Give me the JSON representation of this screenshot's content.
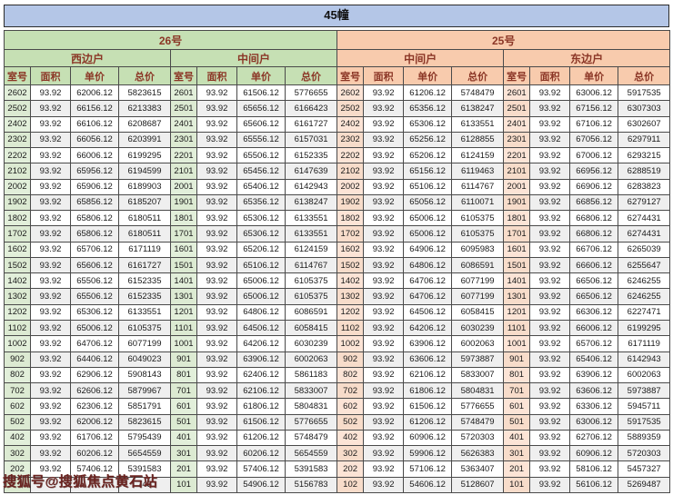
{
  "title": "45幢",
  "watermark": "搜狐号@搜狐焦点黄石站",
  "header": {
    "buildings": [
      {
        "label": "26号",
        "theme": "green"
      },
      {
        "label": "25号",
        "theme": "orange"
      }
    ],
    "units": [
      {
        "label": "西边户",
        "theme": "green"
      },
      {
        "label": "中间户",
        "theme": "green"
      },
      {
        "label": "中间户",
        "theme": "orange"
      },
      {
        "label": "东边户",
        "theme": "orange"
      }
    ],
    "columns": [
      "室号",
      "面积",
      "单价",
      "总价"
    ]
  },
  "table": {
    "rows": [
      [
        "2602",
        "93.92",
        "62006.12",
        "5823615",
        "2601",
        "93.92",
        "61506.12",
        "5776655",
        "2602",
        "93.92",
        "61206.12",
        "5748479",
        "2601",
        "93.92",
        "63006.12",
        "5917535"
      ],
      [
        "2502",
        "93.92",
        "66156.12",
        "6213383",
        "2501",
        "93.92",
        "65656.12",
        "6166423",
        "2502",
        "93.92",
        "65356.12",
        "6138247",
        "2501",
        "93.92",
        "67156.12",
        "6307303"
      ],
      [
        "2402",
        "93.92",
        "66106.12",
        "6208687",
        "2401",
        "93.92",
        "65606.12",
        "6161727",
        "2402",
        "93.92",
        "65306.12",
        "6133551",
        "2401",
        "93.92",
        "67106.12",
        "6302607"
      ],
      [
        "2302",
        "93.92",
        "66056.12",
        "6203991",
        "2301",
        "93.92",
        "65556.12",
        "6157031",
        "2302",
        "93.92",
        "65256.12",
        "6128855",
        "2301",
        "93.92",
        "67056.12",
        "6297911"
      ],
      [
        "2202",
        "93.92",
        "66006.12",
        "6199295",
        "2201",
        "93.92",
        "65506.12",
        "6152335",
        "2202",
        "93.92",
        "65206.12",
        "6124159",
        "2201",
        "93.92",
        "67006.12",
        "6293215"
      ],
      [
        "2102",
        "93.92",
        "65956.12",
        "6194599",
        "2101",
        "93.92",
        "65456.12",
        "6147639",
        "2102",
        "93.92",
        "65156.12",
        "6119463",
        "2101",
        "93.92",
        "66956.12",
        "6288519"
      ],
      [
        "2002",
        "93.92",
        "65906.12",
        "6189903",
        "2001",
        "93.92",
        "65406.12",
        "6142943",
        "2002",
        "93.92",
        "65106.12",
        "6114767",
        "2001",
        "93.92",
        "66906.12",
        "6283823"
      ],
      [
        "1902",
        "93.92",
        "65856.12",
        "6185207",
        "1901",
        "93.92",
        "65356.12",
        "6138247",
        "1902",
        "93.92",
        "65056.12",
        "6110071",
        "1901",
        "93.92",
        "66856.12",
        "6279127"
      ],
      [
        "1802",
        "93.92",
        "65806.12",
        "6180511",
        "1801",
        "93.92",
        "65306.12",
        "6133551",
        "1802",
        "93.92",
        "65006.12",
        "6105375",
        "1801",
        "93.92",
        "66806.12",
        "6274431"
      ],
      [
        "1702",
        "93.92",
        "65806.12",
        "6180511",
        "1701",
        "93.92",
        "65306.12",
        "6133551",
        "1702",
        "93.92",
        "65006.12",
        "6105375",
        "1701",
        "93.92",
        "66806.12",
        "6274431"
      ],
      [
        "1602",
        "93.92",
        "65706.12",
        "6171119",
        "1601",
        "93.92",
        "65206.12",
        "6124159",
        "1602",
        "93.92",
        "64906.12",
        "6095983",
        "1601",
        "93.92",
        "66706.12",
        "6265039"
      ],
      [
        "1502",
        "93.92",
        "65606.12",
        "6161727",
        "1501",
        "93.92",
        "65106.12",
        "6114767",
        "1502",
        "93.92",
        "64806.12",
        "6086591",
        "1501",
        "93.92",
        "66606.12",
        "6255647"
      ],
      [
        "1402",
        "93.92",
        "65506.12",
        "6152335",
        "1401",
        "93.92",
        "65006.12",
        "6105375",
        "1402",
        "93.92",
        "64706.12",
        "6077199",
        "1401",
        "93.92",
        "66506.12",
        "6246255"
      ],
      [
        "1302",
        "93.92",
        "65506.12",
        "6152335",
        "1301",
        "93.92",
        "65006.12",
        "6105375",
        "1302",
        "93.92",
        "64706.12",
        "6077199",
        "1301",
        "93.92",
        "66506.12",
        "6246255"
      ],
      [
        "1202",
        "93.92",
        "65306.12",
        "6133551",
        "1201",
        "93.92",
        "64806.12",
        "6086591",
        "1202",
        "93.92",
        "64506.12",
        "6058415",
        "1201",
        "93.92",
        "66306.12",
        "6227471"
      ],
      [
        "1102",
        "93.92",
        "65006.12",
        "6105375",
        "1101",
        "93.92",
        "64506.12",
        "6058415",
        "1102",
        "93.92",
        "64206.12",
        "6030239",
        "1101",
        "93.92",
        "66006.12",
        "6199295"
      ],
      [
        "1002",
        "93.92",
        "64706.12",
        "6077199",
        "1001",
        "93.92",
        "64206.12",
        "6030239",
        "1002",
        "93.92",
        "63906.12",
        "6002063",
        "1001",
        "93.92",
        "65706.12",
        "6171119"
      ],
      [
        "902",
        "93.92",
        "64406.12",
        "6049023",
        "901",
        "93.92",
        "63906.12",
        "6002063",
        "902",
        "93.92",
        "63606.12",
        "5973887",
        "901",
        "93.92",
        "65406.12",
        "6142943"
      ],
      [
        "802",
        "93.92",
        "62906.12",
        "5908143",
        "801",
        "93.92",
        "62406.12",
        "5861183",
        "802",
        "93.92",
        "62106.12",
        "5833007",
        "801",
        "93.92",
        "63906.12",
        "6002063"
      ],
      [
        "702",
        "93.92",
        "62606.12",
        "5879967",
        "701",
        "93.92",
        "62106.12",
        "5833007",
        "702",
        "93.92",
        "61806.12",
        "5804831",
        "701",
        "93.92",
        "63606.12",
        "5973887"
      ],
      [
        "602",
        "93.92",
        "62306.12",
        "5851791",
        "601",
        "93.92",
        "61806.12",
        "5804831",
        "602",
        "93.92",
        "61506.12",
        "5776655",
        "601",
        "93.92",
        "63306.12",
        "5945711"
      ],
      [
        "502",
        "93.92",
        "62006.12",
        "5823615",
        "501",
        "93.92",
        "61506.12",
        "5776655",
        "502",
        "93.92",
        "61206.12",
        "5748479",
        "501",
        "93.92",
        "63006.12",
        "5917535"
      ],
      [
        "402",
        "93.92",
        "61706.12",
        "5795439",
        "401",
        "93.92",
        "61206.12",
        "5748479",
        "402",
        "93.92",
        "60906.12",
        "5720303",
        "401",
        "93.92",
        "62706.12",
        "5889359"
      ],
      [
        "302",
        "93.92",
        "60206.12",
        "5654559",
        "301",
        "93.92",
        "60206.12",
        "5654559",
        "302",
        "93.92",
        "59906.12",
        "5626383",
        "301",
        "93.92",
        "60906.12",
        "5720303"
      ],
      [
        "202",
        "93.92",
        "57406.12",
        "5391583",
        "201",
        "93.92",
        "57406.12",
        "5391583",
        "202",
        "93.92",
        "57106.12",
        "5363407",
        "201",
        "93.92",
        "58106.12",
        "5457327"
      ],
      [
        "",
        "",
        "",
        "743",
        "101",
        "93.92",
        "54906.12",
        "5156783",
        "102",
        "93.92",
        "54606.12",
        "5128607",
        "101",
        "93.92",
        "56106.12",
        "5269487"
      ]
    ]
  },
  "colors": {
    "title_bg": "#b4c6e7",
    "green_header_bg": "#c6e0b4",
    "orange_header_bg": "#f8cbad",
    "green_room_bg": "#e2efda",
    "orange_room_bg": "#fce4d6",
    "header_text": "#8b3626",
    "alt_row_bg": "#efefef",
    "watermark_color": "#6b2421"
  }
}
